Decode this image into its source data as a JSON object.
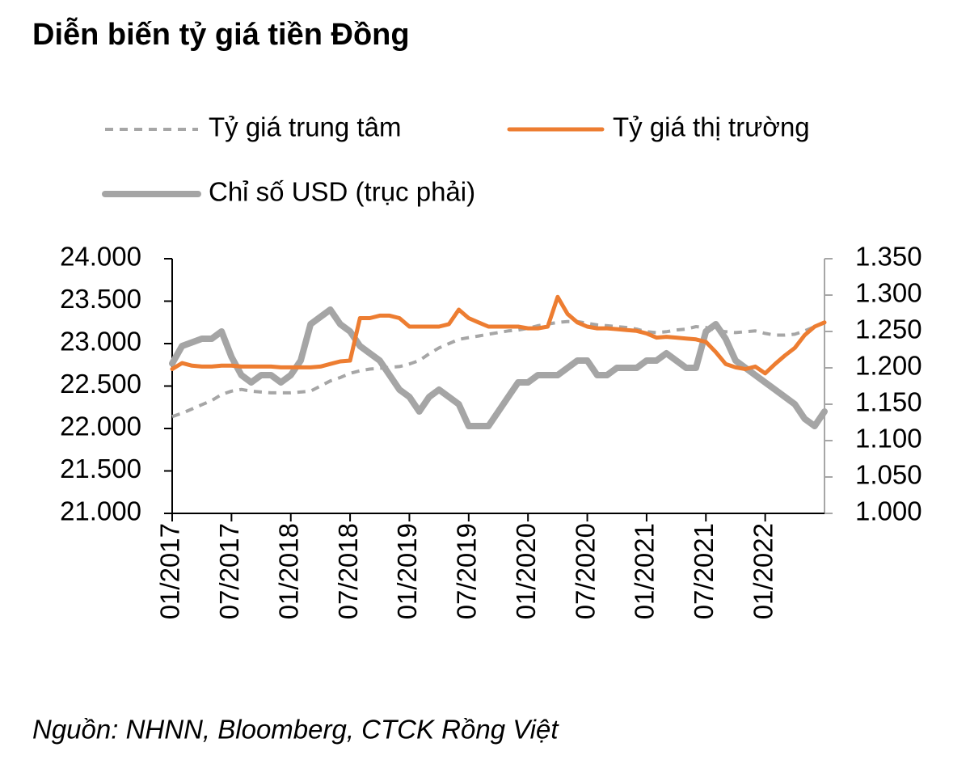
{
  "chart_data": {
    "type": "line",
    "title": "Diễn biến tỷ giá tiền Đồng",
    "source": "Nguồn: NHNN, Bloomberg, CTCK Rồng Việt",
    "x": [
      "2017-01",
      "2017-02",
      "2017-03",
      "2017-04",
      "2017-05",
      "2017-06",
      "2017-07",
      "2017-08",
      "2017-09",
      "2017-10",
      "2017-11",
      "2017-12",
      "2018-01",
      "2018-02",
      "2018-03",
      "2018-04",
      "2018-05",
      "2018-06",
      "2018-07",
      "2018-08",
      "2018-09",
      "2018-10",
      "2018-11",
      "2018-12",
      "2019-01",
      "2019-02",
      "2019-03",
      "2019-04",
      "2019-05",
      "2019-06",
      "2019-07",
      "2019-08",
      "2019-09",
      "2019-10",
      "2019-11",
      "2019-12",
      "2020-01",
      "2020-02",
      "2020-03",
      "2020-04",
      "2020-05",
      "2020-06",
      "2020-07",
      "2020-08",
      "2020-09",
      "2020-10",
      "2020-11",
      "2020-12",
      "2021-01",
      "2021-02",
      "2021-03",
      "2021-04",
      "2021-05",
      "2021-06",
      "2021-07",
      "2021-08",
      "2021-09",
      "2021-10",
      "2021-11",
      "2021-12",
      "2022-01",
      "2022-02",
      "2022-03",
      "2022-04",
      "2022-05",
      "2022-06",
      "2022-07"
    ],
    "series": [
      {
        "name": "Tỷ giá trung tâm",
        "color": "#a6a6a6",
        "dashed": true,
        "width": 4,
        "values": [
          22140,
          22180,
          22230,
          22280,
          22330,
          22400,
          22440,
          22460,
          22440,
          22430,
          22420,
          22420,
          22420,
          22430,
          22440,
          22500,
          22560,
          22600,
          22650,
          22680,
          22700,
          22710,
          22720,
          22730,
          22760,
          22800,
          22880,
          22950,
          23000,
          23050,
          23070,
          23090,
          23110,
          23130,
          23150,
          23160,
          23180,
          23210,
          23230,
          23250,
          23260,
          23260,
          23240,
          23220,
          23210,
          23200,
          23190,
          23170,
          23140,
          23130,
          23140,
          23160,
          23170,
          23200,
          23190,
          23160,
          23140,
          23130,
          23140,
          23150,
          23120,
          23100,
          23100,
          23110,
          23150,
          23200,
          23250
        ]
      },
      {
        "name": "Tỷ giá thị trường",
        "color": "#ed7d31",
        "dashed": false,
        "width": 5,
        "values": [
          22700,
          22770,
          22740,
          22730,
          22730,
          22740,
          22740,
          22730,
          22730,
          22730,
          22730,
          22720,
          22720,
          22720,
          22720,
          22730,
          22760,
          22790,
          22800,
          23300,
          23300,
          23330,
          23330,
          23300,
          23200,
          23200,
          23200,
          23200,
          23230,
          23400,
          23300,
          23250,
          23200,
          23200,
          23200,
          23200,
          23180,
          23180,
          23200,
          23550,
          23350,
          23250,
          23200,
          23180,
          23180,
          23170,
          23160,
          23150,
          23120,
          23070,
          23080,
          23070,
          23060,
          23050,
          23020,
          22900,
          22760,
          22720,
          22700,
          22730,
          22650,
          22760,
          22860,
          22950,
          23100,
          23200,
          23250
        ]
      },
      {
        "name": "Chỉ số USD (trục phải)",
        "color": "#a5a5a5",
        "dashed": false,
        "width": 8,
        "axis": "y2",
        "values": [
          1.206,
          1.23,
          1.235,
          1.24,
          1.24,
          1.25,
          1.215,
          1.19,
          1.18,
          1.19,
          1.19,
          1.18,
          1.19,
          1.21,
          1.26,
          1.27,
          1.28,
          1.26,
          1.25,
          1.23,
          1.22,
          1.21,
          1.19,
          1.17,
          1.16,
          1.14,
          1.16,
          1.17,
          1.16,
          1.15,
          1.12,
          1.12,
          1.12,
          1.14,
          1.16,
          1.18,
          1.18,
          1.19,
          1.19,
          1.19,
          1.2,
          1.21,
          1.21,
          1.19,
          1.19,
          1.2,
          1.2,
          1.2,
          1.21,
          1.21,
          1.22,
          1.21,
          1.2,
          1.2,
          1.25,
          1.26,
          1.24,
          1.21,
          1.2,
          1.19,
          1.18,
          1.17,
          1.16,
          1.15,
          1.13,
          1.12,
          1.14
        ]
      }
    ],
    "xlim": [
      "2017-01",
      "2022-07"
    ],
    "xticks": [
      {
        "value": "2017-01",
        "label": "01/2017"
      },
      {
        "value": "2017-07",
        "label": "07/2017"
      },
      {
        "value": "2018-01",
        "label": "01/2018"
      },
      {
        "value": "2018-07",
        "label": "07/2018"
      },
      {
        "value": "2019-01",
        "label": "01/2019"
      },
      {
        "value": "2019-07",
        "label": "07/2019"
      },
      {
        "value": "2020-01",
        "label": "01/2020"
      },
      {
        "value": "2020-07",
        "label": "07/2020"
      },
      {
        "value": "2021-01",
        "label": "01/2021"
      },
      {
        "value": "2021-07",
        "label": "07/2021"
      },
      {
        "value": "2022-01",
        "label": "01/2022"
      }
    ],
    "ylim": [
      21000,
      24000
    ],
    "yticks": [
      {
        "value": 21000,
        "label": "21.000"
      },
      {
        "value": 21500,
        "label": "21.500"
      },
      {
        "value": 22000,
        "label": "22.000"
      },
      {
        "value": 22500,
        "label": "22.500"
      },
      {
        "value": 23000,
        "label": "23.000"
      },
      {
        "value": 23500,
        "label": "23.500"
      },
      {
        "value": 24000,
        "label": "24.000"
      }
    ],
    "y2lim": [
      1.0,
      1.35
    ],
    "y2ticks": [
      {
        "value": 1.0,
        "label": "1.000"
      },
      {
        "value": 1.05,
        "label": "1.050"
      },
      {
        "value": 1.1,
        "label": "1.100"
      },
      {
        "value": 1.15,
        "label": "1.150"
      },
      {
        "value": 1.2,
        "label": "1.200"
      },
      {
        "value": 1.25,
        "label": "1.250"
      },
      {
        "value": 1.3,
        "label": "1.300"
      },
      {
        "value": 1.35,
        "label": "1.350"
      }
    ]
  }
}
